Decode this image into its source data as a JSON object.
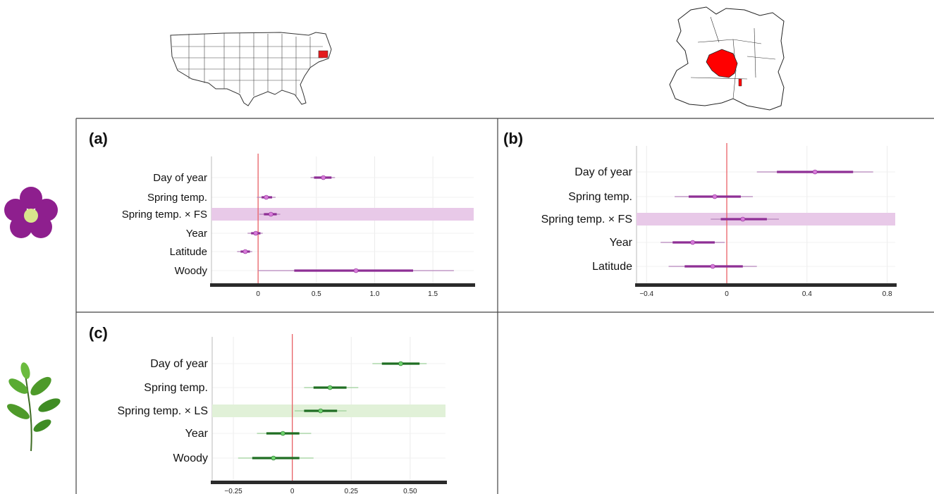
{
  "colors": {
    "flowering": "#8e2f95",
    "flowering_light": "#b585bb",
    "flowering_point": "#d77ad9",
    "flowering_highlight": "#e8c9e8",
    "leafing": "#1f6e22",
    "leafing_light": "#9ccf99",
    "leafing_point": "#6fd36f",
    "leafing_highlight": "#e1f1d8",
    "zero_line": "#e8555a",
    "highlight_state": "#ff0000"
  },
  "icons": {
    "usa_map": "usa-map-icon",
    "europe_map": "europe-map-icon",
    "flower": "flower-icon",
    "leaf": "leaf-sprig-icon"
  },
  "chart_data": [
    {
      "panel": "(a)",
      "type": "interval",
      "color_scheme": "flowering",
      "xlim": [
        -0.4,
        1.85
      ],
      "xticks": [
        0,
        0.5,
        1.0,
        1.5
      ],
      "xtick_labels": [
        "0",
        "0.5",
        "1.0",
        "1.5"
      ],
      "highlight": "Spring temp. × FS",
      "items": [
        {
          "label": "Day of year",
          "median": 0.56,
          "inner": [
            0.48,
            0.63
          ],
          "outer": [
            0.45,
            0.66
          ]
        },
        {
          "label": "Spring temp.",
          "median": 0.07,
          "inner": [
            0.03,
            0.12
          ],
          "outer": [
            -0.01,
            0.15
          ]
        },
        {
          "label": "Spring temp. × FS",
          "median": 0.11,
          "inner": [
            0.05,
            0.16
          ],
          "outer": [
            0.01,
            0.19
          ]
        },
        {
          "label": "Year",
          "median": -0.02,
          "inner": [
            -0.06,
            0.02
          ],
          "outer": [
            -0.09,
            0.04
          ]
        },
        {
          "label": "Latitude",
          "median": -0.11,
          "inner": [
            -0.15,
            -0.07
          ],
          "outer": [
            -0.18,
            -0.05
          ]
        },
        {
          "label": "Woody",
          "median": 0.84,
          "inner": [
            0.31,
            1.33
          ],
          "outer": [
            0.0,
            1.68
          ]
        }
      ]
    },
    {
      "panel": "(b)",
      "type": "interval",
      "color_scheme": "flowering",
      "xlim": [
        -0.45,
        0.84
      ],
      "xticks": [
        -0.4,
        0,
        0.4,
        0.8
      ],
      "xtick_labels": [
        "−0.4",
        "0",
        "0.4",
        "0.8"
      ],
      "highlight": "Spring temp. × FS",
      "items": [
        {
          "label": "Day of year",
          "median": 0.44,
          "inner": [
            0.25,
            0.63
          ],
          "outer": [
            0.15,
            0.73
          ]
        },
        {
          "label": "Spring temp.",
          "median": -0.06,
          "inner": [
            -0.19,
            0.07
          ],
          "outer": [
            -0.26,
            0.13
          ]
        },
        {
          "label": "Spring temp. × FS",
          "median": 0.08,
          "inner": [
            -0.03,
            0.2
          ],
          "outer": [
            -0.08,
            0.26
          ]
        },
        {
          "label": "Year",
          "median": -0.17,
          "inner": [
            -0.27,
            -0.06
          ],
          "outer": [
            -0.33,
            -0.01
          ]
        },
        {
          "label": "Latitude",
          "median": -0.07,
          "inner": [
            -0.21,
            0.08
          ],
          "outer": [
            -0.29,
            0.15
          ]
        }
      ]
    },
    {
      "panel": "(c)",
      "type": "interval",
      "color_scheme": "leafing",
      "xlim": [
        -0.34,
        0.65
      ],
      "xticks": [
        -0.25,
        0,
        0.25,
        0.5
      ],
      "xtick_labels": [
        "−0.25",
        "0",
        "0.25",
        "0.50"
      ],
      "highlight": "Spring temp. × LS",
      "items": [
        {
          "label": "Day of year",
          "median": 0.46,
          "inner": [
            0.38,
            0.54
          ],
          "outer": [
            0.34,
            0.57
          ]
        },
        {
          "label": "Spring temp.",
          "median": 0.16,
          "inner": [
            0.09,
            0.23
          ],
          "outer": [
            0.05,
            0.28
          ]
        },
        {
          "label": "Spring temp. × LS",
          "median": 0.12,
          "inner": [
            0.05,
            0.19
          ],
          "outer": [
            0.01,
            0.23
          ]
        },
        {
          "label": "Year",
          "median": -0.04,
          "inner": [
            -0.11,
            0.03
          ],
          "outer": [
            -0.15,
            0.08
          ]
        },
        {
          "label": "Woody",
          "median": -0.08,
          "inner": [
            -0.17,
            0.03
          ],
          "outer": [
            -0.23,
            0.09
          ]
        }
      ]
    }
  ]
}
